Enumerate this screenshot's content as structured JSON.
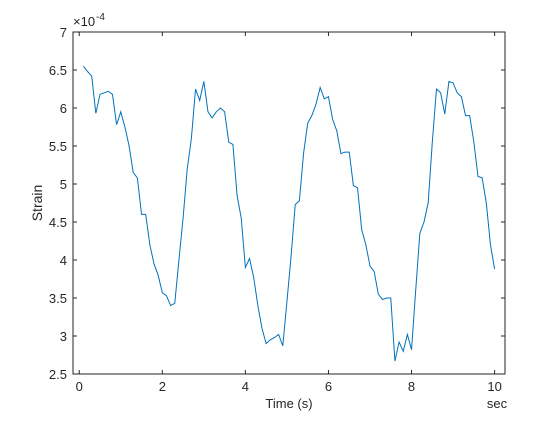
{
  "chart_data": {
    "type": "line",
    "xlabel": "Time (s)",
    "ylabel": "Strain",
    "x_unit": "sec",
    "y_exponent": {
      "base": "×10",
      "power": "-4"
    },
    "x": [
      0.1,
      0.2,
      0.3,
      0.4,
      0.5,
      0.6,
      0.7,
      0.8,
      0.9,
      1.0,
      1.1,
      1.2,
      1.3,
      1.4,
      1.5,
      1.6,
      1.7,
      1.8,
      1.9,
      2.0,
      2.1,
      2.2,
      2.3,
      2.4,
      2.5,
      2.6,
      2.7,
      2.8,
      2.9,
      3.0,
      3.1,
      3.2,
      3.3,
      3.4,
      3.5,
      3.6,
      3.7,
      3.8,
      3.9,
      4.0,
      4.1,
      4.2,
      4.3,
      4.4,
      4.5,
      4.6,
      4.7,
      4.8,
      4.9,
      5.0,
      5.1,
      5.2,
      5.3,
      5.4,
      5.5,
      5.6,
      5.7,
      5.8,
      5.9,
      6.0,
      6.1,
      6.2,
      6.3,
      6.4,
      6.5,
      6.6,
      6.7,
      6.8,
      6.9,
      7.0,
      7.1,
      7.2,
      7.3,
      7.4,
      7.5,
      7.6,
      7.7,
      7.8,
      7.9,
      8.0,
      8.1,
      8.2,
      8.3,
      8.4,
      8.5,
      8.6,
      8.7,
      8.8,
      8.9,
      9.0,
      9.1,
      9.2,
      9.3,
      9.4,
      9.5,
      9.6,
      9.7,
      9.8,
      9.9,
      10.0
    ],
    "series": [
      {
        "name": "Strain",
        "color": "#0072bd",
        "values": [
          6.55,
          6.48,
          6.42,
          5.93,
          6.18,
          6.2,
          6.22,
          6.18,
          5.78,
          5.95,
          5.75,
          5.5,
          5.15,
          5.08,
          4.6,
          4.6,
          4.2,
          3.95,
          3.8,
          3.57,
          3.53,
          3.4,
          3.43,
          4.0,
          4.55,
          5.2,
          5.6,
          6.25,
          6.1,
          6.35,
          5.95,
          5.87,
          5.95,
          6.0,
          5.95,
          5.55,
          5.52,
          4.85,
          4.55,
          3.9,
          4.02,
          3.77,
          3.4,
          3.1,
          2.9,
          2.95,
          2.98,
          3.02,
          2.87,
          3.45,
          4.05,
          4.73,
          4.78,
          5.4,
          5.8,
          5.9,
          6.05,
          6.27,
          6.12,
          6.15,
          5.85,
          5.7,
          5.4,
          5.42,
          5.42,
          4.98,
          4.95,
          4.4,
          4.2,
          3.92,
          3.85,
          3.55,
          3.48,
          3.5,
          3.5,
          2.67,
          2.92,
          2.8,
          3.02,
          2.82,
          3.6,
          4.35,
          4.5,
          4.75,
          5.55,
          6.25,
          6.2,
          5.92,
          6.35,
          6.33,
          6.2,
          6.15,
          5.9,
          5.9,
          5.55,
          5.1,
          5.08,
          4.75,
          4.2,
          3.88
        ]
      }
    ],
    "xlim": [
      -0.15,
      10.25
    ],
    "xticks": [
      0,
      2,
      4,
      6,
      8,
      10
    ],
    "ylim": [
      2.5,
      7
    ],
    "yticks": [
      2.5,
      3,
      3.5,
      4,
      4.5,
      5,
      5.5,
      6,
      6.5,
      7
    ]
  }
}
